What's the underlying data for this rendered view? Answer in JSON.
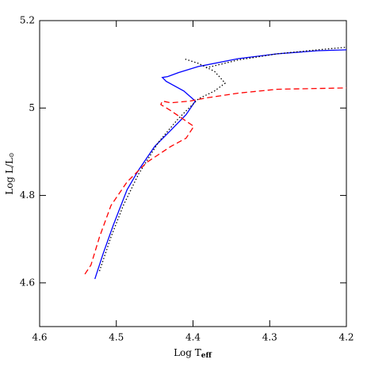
{
  "chart_data": {
    "type": "line",
    "xlabel": {
      "text": "Log T",
      "sub": "eff"
    },
    "ylabel": {
      "text": "Log L/L",
      "sub": "⊙"
    },
    "xlim": [
      4.6,
      4.2
    ],
    "ylim": [
      4.5,
      5.2
    ],
    "xticks": [
      4.6,
      4.5,
      4.4,
      4.3,
      4.2
    ],
    "yticks": [
      4.6,
      4.8,
      5,
      5.2
    ],
    "series": [
      {
        "color": "#0000ff",
        "dash": "solid",
        "x": [
          4.528,
          4.517,
          4.504,
          4.486,
          4.471,
          4.45,
          4.429,
          4.409,
          4.397,
          4.412,
          4.435,
          4.44,
          4.433,
          4.419,
          4.393,
          4.341,
          4.29,
          4.238,
          4.2
        ],
        "values": [
          4.609,
          4.668,
          4.732,
          4.813,
          4.858,
          4.912,
          4.949,
          4.985,
          5.016,
          5.039,
          5.061,
          5.07,
          5.072,
          5.081,
          5.095,
          5.113,
          5.124,
          5.131,
          5.133
        ]
      },
      {
        "color": "#000000",
        "dash": "dotted",
        "x": [
          4.522,
          4.507,
          4.491,
          4.471,
          4.445,
          4.419,
          4.393,
          4.372,
          4.358,
          4.372,
          4.393,
          4.412,
          null,
          4.383,
          4.341,
          4.29,
          4.238,
          4.2
        ],
        "values": [
          4.627,
          4.705,
          4.777,
          4.849,
          4.922,
          4.976,
          5.021,
          5.039,
          5.057,
          5.084,
          5.102,
          5.113,
          null,
          5.092,
          5.11,
          5.124,
          5.133,
          5.139
        ]
      },
      {
        "color": "#ff0000",
        "dash": "dashed",
        "x": [
          4.541,
          4.533,
          4.522,
          4.507,
          4.486,
          4.46,
          4.429,
          4.409,
          4.399,
          4.414,
          4.429,
          4.442,
          4.44,
          4.429,
          4.404,
          4.383,
          4.341,
          4.29,
          4.2
        ],
        "values": [
          4.62,
          4.641,
          4.705,
          4.777,
          4.831,
          4.876,
          4.912,
          4.931,
          4.958,
          4.976,
          4.994,
          5.008,
          5.016,
          5.012,
          5.016,
          5.023,
          5.034,
          5.043,
          5.046
        ]
      }
    ]
  }
}
